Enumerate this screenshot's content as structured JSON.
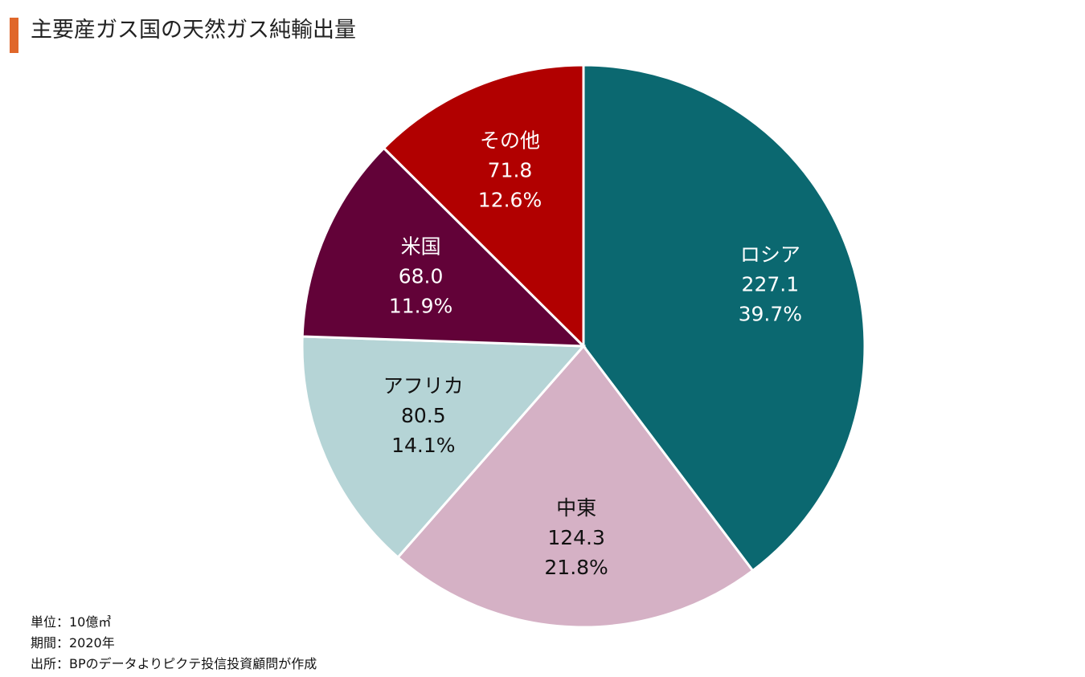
{
  "title": "主要産ガス国の天然ガス純輸出量",
  "chart_data": {
    "type": "pie",
    "title": "主要産ガス国の天然ガス純輸出量",
    "slices": [
      {
        "label": "ロシア",
        "value": 227.1,
        "percent": "39.7%",
        "value_text": "227.1",
        "color": "#0b6870",
        "text_color": "#ffffff"
      },
      {
        "label": "中東",
        "value": 124.3,
        "percent": "21.8%",
        "value_text": "124.3",
        "color": "#d5b1c5",
        "text_color": "#111111"
      },
      {
        "label": "アフリカ",
        "value": 80.5,
        "percent": "14.1%",
        "value_text": "80.5",
        "color": "#b5d4d6",
        "text_color": "#111111"
      },
      {
        "label": "米国",
        "value": 68.0,
        "percent": "11.9%",
        "value_text": "68.0",
        "color": "#620238",
        "text_color": "#ffffff"
      },
      {
        "label": "その他",
        "value": 71.8,
        "percent": "12.6%",
        "value_text": "71.8",
        "color": "#b10000",
        "text_color": "#ffffff"
      }
    ],
    "start": "12 o'clock",
    "direction": "clockwise",
    "legend": "none"
  },
  "notes": {
    "unit": "単位：10億㎥",
    "period": "期間：2020年",
    "source": "出所：BPのデータよりピクテ投信投資顧問が作成"
  }
}
